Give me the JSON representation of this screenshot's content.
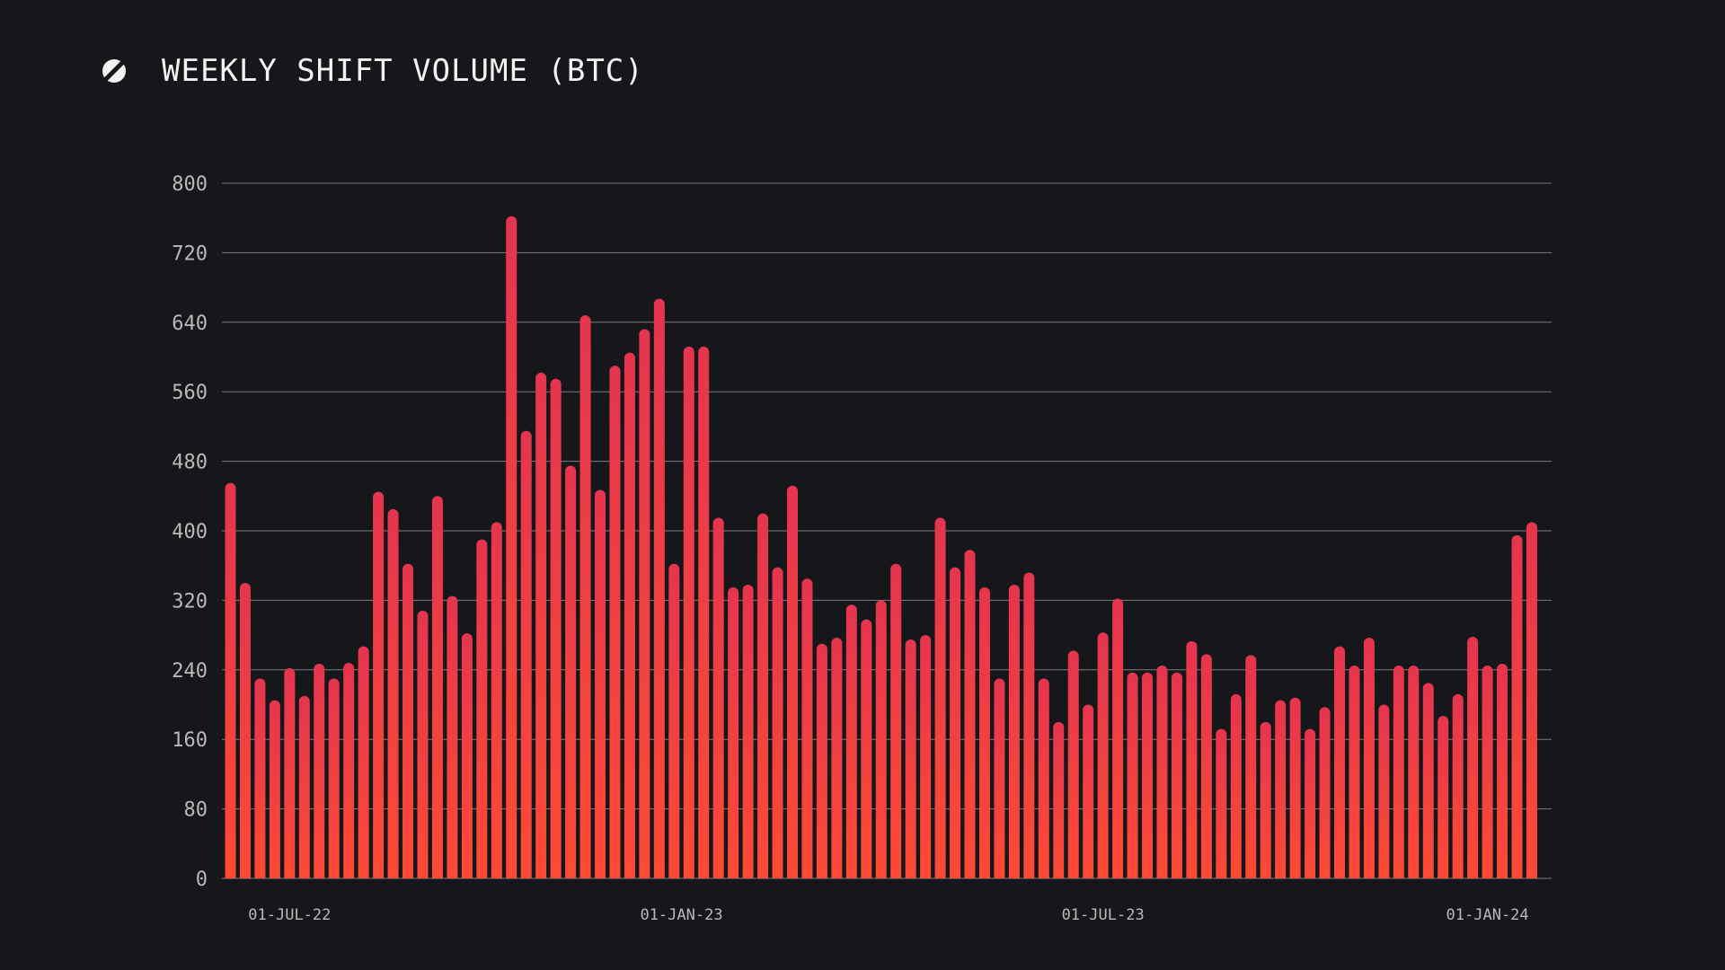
{
  "header": {
    "title": "WEEKLY SHIFT VOLUME (BTC)",
    "logo_icon": "sideshift-logo-icon"
  },
  "colors": {
    "background": "#16171b",
    "bar_top": "#e5354f",
    "bar_bottom": "#fd4a35",
    "grid": "#7c7d82",
    "text": "#f2f2f2"
  },
  "chart_data": {
    "type": "bar",
    "title": "WEEKLY SHIFT VOLUME (BTC)",
    "xlabel": "",
    "ylabel": "",
    "ylim": [
      0,
      800
    ],
    "yticks": [
      0,
      80,
      160,
      240,
      320,
      400,
      480,
      560,
      640,
      720,
      800
    ],
    "grid": true,
    "x_tick_labels": [
      {
        "label": "01-JUL-22",
        "index": 4
      },
      {
        "label": "01-JAN-23",
        "index": 30.5
      },
      {
        "label": "01-JUL-23",
        "index": 59
      },
      {
        "label": "01-JAN-24",
        "index": 85
      }
    ],
    "series": [
      {
        "values": [
          455,
          340,
          230,
          205,
          242,
          210,
          247,
          230,
          248,
          267,
          445,
          425,
          362,
          308,
          440,
          325,
          282,
          390,
          410,
          762,
          515,
          582,
          575,
          475,
          648,
          447,
          590,
          605,
          632,
          667,
          362,
          612,
          612,
          415,
          335,
          338,
          420,
          358,
          452,
          345,
          270,
          277,
          315,
          298,
          320,
          362,
          275,
          280,
          415,
          358,
          378,
          335,
          230,
          338,
          352,
          230,
          180,
          262,
          200,
          283,
          322,
          237,
          237,
          245,
          237,
          273,
          258,
          172,
          212,
          257,
          180,
          205,
          208,
          172,
          197,
          267,
          245,
          277,
          200,
          245,
          245,
          225,
          187,
          212,
          278,
          245,
          247,
          395,
          410
        ]
      }
    ]
  }
}
